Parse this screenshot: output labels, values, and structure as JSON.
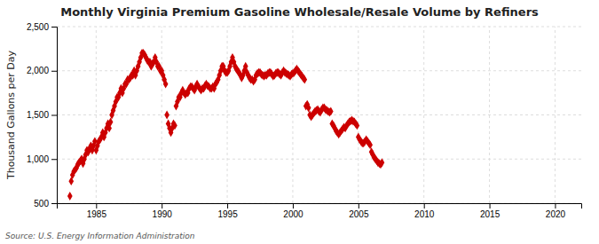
{
  "chart_data": {
    "type": "scatter",
    "title": "Monthly Virginia Premium Gasoline Wholesale/Resale Volume by Refiners",
    "ylabel": "Thousand Gallons per Day",
    "annotation": "Source: U.S. Energy Information Administration",
    "color": "#cc0000",
    "marker": "diamond",
    "grid": true,
    "xlim": [
      1982,
      2022
    ],
    "ylim": [
      500,
      2500
    ],
    "xticks": [
      1985,
      1990,
      1995,
      2000,
      2005,
      2010,
      2015,
      2020
    ],
    "yticks": [
      500,
      {
        "value": 1000,
        "label": "1,000"
      },
      {
        "value": 1500,
        "label": "1,500"
      },
      {
        "value": 2000,
        "label": "2,000"
      },
      {
        "value": 2500,
        "label": "2,500"
      }
    ],
    "x": [
      1983.0,
      1983.1,
      1983.2,
      1983.3,
      1983.4,
      1983.5,
      1983.6,
      1983.7,
      1983.8,
      1983.9,
      1984.0,
      1984.1,
      1984.2,
      1984.3,
      1984.4,
      1984.5,
      1984.6,
      1984.7,
      1984.8,
      1984.9,
      1985.0,
      1985.1,
      1985.2,
      1985.3,
      1985.4,
      1985.5,
      1985.6,
      1985.7,
      1985.8,
      1985.9,
      1986.0,
      1986.1,
      1986.2,
      1986.3,
      1986.4,
      1986.5,
      1986.6,
      1986.7,
      1986.8,
      1986.9,
      1987.0,
      1987.1,
      1987.2,
      1987.3,
      1987.4,
      1987.5,
      1987.6,
      1987.7,
      1987.8,
      1987.9,
      1988.0,
      1988.1,
      1988.2,
      1988.3,
      1988.4,
      1988.5,
      1988.6,
      1988.7,
      1988.8,
      1988.9,
      1989.0,
      1989.1,
      1989.2,
      1989.3,
      1989.4,
      1989.5,
      1989.6,
      1989.7,
      1989.8,
      1989.9,
      1990.0,
      1990.1,
      1990.2,
      1990.3,
      1990.4,
      1990.5,
      1990.6,
      1990.7,
      1990.8,
      1990.9,
      1991.0,
      1991.1,
      1991.2,
      1991.3,
      1991.4,
      1991.5,
      1991.6,
      1991.7,
      1991.8,
      1991.9,
      1992.0,
      1992.1,
      1992.2,
      1992.3,
      1992.4,
      1992.5,
      1992.6,
      1992.7,
      1992.8,
      1992.9,
      1993.0,
      1993.1,
      1993.2,
      1993.3,
      1993.4,
      1993.5,
      1993.6,
      1993.7,
      1993.8,
      1993.9,
      1994.0,
      1994.1,
      1994.2,
      1994.3,
      1994.4,
      1994.5,
      1994.6,
      1994.7,
      1994.8,
      1994.9,
      1995.0,
      1995.1,
      1995.2,
      1995.3,
      1995.4,
      1995.5,
      1995.6,
      1995.7,
      1995.8,
      1995.9,
      1996.0,
      1996.1,
      1996.2,
      1996.3,
      1996.4,
      1996.5,
      1996.6,
      1996.7,
      1996.8,
      1996.9,
      1997.0,
      1997.1,
      1997.2,
      1997.3,
      1997.4,
      1997.5,
      1997.6,
      1997.7,
      1997.8,
      1997.9,
      1998.0,
      1998.1,
      1998.2,
      1998.3,
      1998.4,
      1998.5,
      1998.6,
      1998.7,
      1998.8,
      1998.9,
      1999.0,
      1999.1,
      1999.2,
      1999.3,
      1999.4,
      1999.5,
      1999.6,
      1999.7,
      1999.8,
      1999.9,
      2000.0,
      2000.1,
      2000.2,
      2000.3,
      2000.4,
      2000.5,
      2000.6,
      2000.7,
      2000.8,
      2000.9,
      2001.0,
      2001.1,
      2001.2,
      2001.3,
      2001.4,
      2001.5,
      2001.6,
      2001.7,
      2001.8,
      2001.9,
      2002.0,
      2002.1,
      2002.2,
      2002.3,
      2002.4,
      2002.5,
      2002.6,
      2002.7,
      2002.8,
      2002.9,
      2003.0,
      2003.1,
      2003.2,
      2003.3,
      2003.4,
      2003.5,
      2003.6,
      2003.7,
      2003.8,
      2003.9,
      2004.0,
      2004.1,
      2004.2,
      2004.3,
      2004.4,
      2004.5,
      2004.6,
      2004.7,
      2004.8,
      2004.9,
      2005.0,
      2005.1,
      2005.2,
      2005.3,
      2005.4,
      2005.5,
      2005.6,
      2005.7,
      2005.8,
      2005.9,
      2006.0,
      2006.1,
      2006.2,
      2006.3,
      2006.4,
      2006.5,
      2006.6,
      2006.7,
      2006.8
    ],
    "values": [
      580,
      750,
      820,
      860,
      880,
      900,
      940,
      960,
      980,
      1000,
      950,
      1000,
      1050,
      1100,
      1080,
      1120,
      1150,
      1100,
      1150,
      1200,
      1100,
      1150,
      1200,
      1220,
      1250,
      1300,
      1250,
      1300,
      1350,
      1400,
      1350,
      1420,
      1500,
      1550,
      1600,
      1650,
      1700,
      1700,
      1750,
      1800,
      1750,
      1800,
      1850,
      1850,
      1900,
      1900,
      1920,
      1950,
      1950,
      2000,
      1950,
      2000,
      2050,
      2100,
      2150,
      2200,
      2200,
      2180,
      2150,
      2120,
      2100,
      2100,
      2050,
      2080,
      2100,
      2150,
      2100,
      2050,
      2050,
      2000,
      2000,
      1950,
      1900,
      1850,
      1500,
      1400,
      1350,
      1300,
      1350,
      1400,
      1380,
      1600,
      1650,
      1700,
      1700,
      1750,
      1780,
      1750,
      1730,
      1750,
      1750,
      1800,
      1820,
      1820,
      1800,
      1780,
      1820,
      1850,
      1820,
      1800,
      1780,
      1800,
      1800,
      1830,
      1850,
      1830,
      1820,
      1800,
      1800,
      1820,
      1800,
      1850,
      1870,
      1900,
      1950,
      2000,
      2050,
      2050,
      2000,
      1980,
      1980,
      2000,
      2050,
      2100,
      2150,
      2100,
      2050,
      2020,
      2000,
      1980,
      1950,
      1920,
      1950,
      2000,
      2050,
      1980,
      1950,
      1920,
      1900,
      1900,
      1880,
      1900,
      1950,
      1970,
      1980,
      1980,
      1960,
      1950,
      1940,
      1950,
      1950,
      1970,
      1980,
      1980,
      1960,
      1940,
      1950,
      1970,
      1980,
      1980,
      1960,
      1950,
      1980,
      2000,
      1980,
      1970,
      1960,
      1950,
      1940,
      1960,
      1970,
      1980,
      2000,
      2020,
      2000,
      1980,
      1960,
      1940,
      1920,
      1900,
      1600,
      1620,
      1580,
      1500,
      1480,
      1500,
      1520,
      1540,
      1550,
      1560,
      1540,
      1530,
      1560,
      1580,
      1580,
      1560,
      1550,
      1540,
      1530,
      1540,
      1400,
      1380,
      1350,
      1320,
      1300,
      1280,
      1300,
      1320,
      1340,
      1360,
      1350,
      1380,
      1400,
      1420,
      1430,
      1440,
      1430,
      1420,
      1400,
      1380,
      1250,
      1220,
      1200,
      1180,
      1180,
      1200,
      1220,
      1200,
      1180,
      1160,
      1080,
      1050,
      1020,
      1000,
      980,
      960,
      950,
      940,
      960
    ]
  }
}
